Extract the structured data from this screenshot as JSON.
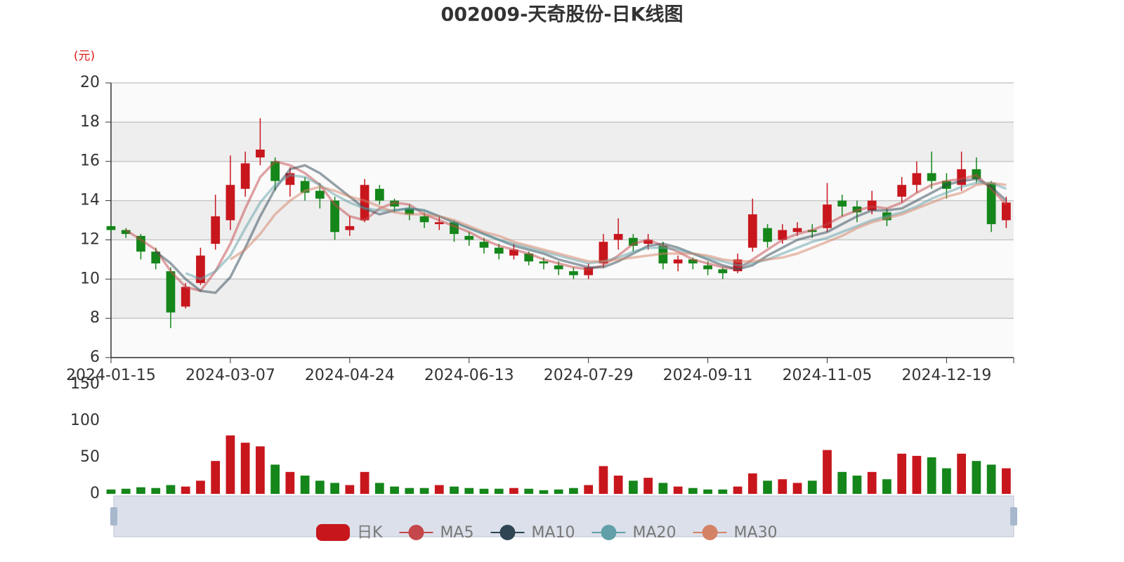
{
  "chart_data": [
    {
      "type": "candlestick",
      "title": "002009-天奇股份-日K线图",
      "y_unit": "(元)",
      "name": "日K",
      "up_color": "#c8161d",
      "down_color": "#14861a",
      "grid": true,
      "ylim": [
        6,
        20
      ],
      "yticks": [
        6,
        8,
        10,
        12,
        14,
        16,
        18,
        20
      ],
      "categories": [
        "2024-01-15",
        null,
        null,
        null,
        null,
        null,
        null,
        null,
        "2024-03-07",
        null,
        null,
        null,
        null,
        null,
        null,
        null,
        "2024-04-24",
        null,
        null,
        null,
        null,
        null,
        null,
        null,
        "2024-06-13",
        null,
        null,
        null,
        null,
        null,
        null,
        null,
        "2024-07-29",
        null,
        null,
        null,
        null,
        null,
        null,
        null,
        "2024-09-11",
        null,
        null,
        null,
        null,
        null,
        null,
        null,
        "2024-11-05",
        null,
        null,
        null,
        null,
        null,
        null,
        null,
        "2024-12-19",
        null,
        null,
        null,
        null
      ],
      "open": [
        12.7,
        12.5,
        12.2,
        11.4,
        10.4,
        8.6,
        9.8,
        11.8,
        13.0,
        14.6,
        16.2,
        16.0,
        14.8,
        15.0,
        14.5,
        14.0,
        12.5,
        13.0,
        14.6,
        14.0,
        13.6,
        13.2,
        12.8,
        12.9,
        12.2,
        11.9,
        11.6,
        11.2,
        11.3,
        10.9,
        10.7,
        10.4,
        10.2,
        10.8,
        12.0,
        12.1,
        11.8,
        11.7,
        10.8,
        11.0,
        10.7,
        10.5,
        10.4,
        11.6,
        12.6,
        12.0,
        12.4,
        12.5,
        12.6,
        14.0,
        13.7,
        13.5,
        13.4,
        14.2,
        14.8,
        15.4,
        15.0,
        14.8,
        15.6,
        14.9,
        13.0
      ],
      "close": [
        12.5,
        12.3,
        11.4,
        10.8,
        8.3,
        9.6,
        11.2,
        13.2,
        14.8,
        15.9,
        16.6,
        15.0,
        15.4,
        14.4,
        14.1,
        12.4,
        12.7,
        14.8,
        14.0,
        13.7,
        13.3,
        12.9,
        12.9,
        12.3,
        12.0,
        11.6,
        11.3,
        11.5,
        10.9,
        10.8,
        10.5,
        10.2,
        10.6,
        11.9,
        12.3,
        11.7,
        12.0,
        10.8,
        11.0,
        10.8,
        10.5,
        10.3,
        11.0,
        13.3,
        11.9,
        12.5,
        12.6,
        12.4,
        13.8,
        13.7,
        13.4,
        14.0,
        13.0,
        14.8,
        15.4,
        15.0,
        14.6,
        15.6,
        15.1,
        12.8,
        13.9
      ],
      "low": [
        12.4,
        12.1,
        11.0,
        10.5,
        7.5,
        8.5,
        9.7,
        11.5,
        12.5,
        14.2,
        15.8,
        14.5,
        14.2,
        14.0,
        13.6,
        12.0,
        12.2,
        12.9,
        13.8,
        13.4,
        13.0,
        12.6,
        12.5,
        11.9,
        11.7,
        11.3,
        11.0,
        11.0,
        10.7,
        10.5,
        10.2,
        10.0,
        10.0,
        10.6,
        11.5,
        11.4,
        11.5,
        10.5,
        10.4,
        10.5,
        10.2,
        10.0,
        10.3,
        11.4,
        11.6,
        11.8,
        12.2,
        12.1,
        12.4,
        13.2,
        12.9,
        13.3,
        12.7,
        13.9,
        14.4,
        14.6,
        14.1,
        14.5,
        14.9,
        12.4,
        12.6
      ],
      "high": [
        12.8,
        12.6,
        12.3,
        11.6,
        10.6,
        9.8,
        11.6,
        14.3,
        16.3,
        16.5,
        18.2,
        16.2,
        15.7,
        15.2,
        14.9,
        14.2,
        13.2,
        15.1,
        14.8,
        14.1,
        13.8,
        13.4,
        13.2,
        13.0,
        12.4,
        12.1,
        11.8,
        11.8,
        11.4,
        11.1,
        10.9,
        10.6,
        10.8,
        12.3,
        13.1,
        12.3,
        12.3,
        11.9,
        11.2,
        11.1,
        10.9,
        10.6,
        11.3,
        14.1,
        12.8,
        12.8,
        12.9,
        12.8,
        14.9,
        14.3,
        14.0,
        14.5,
        13.6,
        15.2,
        16.0,
        16.5,
        15.4,
        16.5,
        16.2,
        15.0,
        14.2
      ],
      "series": [
        {
          "name": "MA5",
          "color": "#c4484b",
          "values": [
            null,
            12.5,
            12.0,
            11.5,
            10.4,
            9.6,
            9.4,
            10.4,
            11.8,
            13.6,
            15.2,
            16.0,
            15.8,
            15.4,
            14.8,
            13.8,
            13.2,
            13.0,
            13.6,
            13.9,
            13.8,
            13.3,
            13.0,
            12.7,
            12.4,
            12.0,
            11.7,
            11.5,
            11.3,
            11.0,
            10.8,
            10.6,
            10.5,
            10.7,
            11.2,
            11.8,
            12.0,
            11.7,
            11.4,
            11.0,
            10.8,
            10.6,
            10.5,
            11.0,
            11.5,
            12.0,
            12.3,
            12.5,
            12.8,
            13.2,
            13.5,
            13.7,
            13.6,
            13.9,
            14.4,
            14.8,
            15.0,
            15.1,
            15.3,
            14.6,
            13.8
          ]
        },
        {
          "name": "MA10",
          "color": "#2f4554",
          "values": [
            null,
            null,
            null,
            11.4,
            10.8,
            10.0,
            9.4,
            9.3,
            10.1,
            11.6,
            13.2,
            14.6,
            15.6,
            15.8,
            15.4,
            14.8,
            14.2,
            13.6,
            13.3,
            13.5,
            13.6,
            13.5,
            13.2,
            12.9,
            12.6,
            12.3,
            12.0,
            11.7,
            11.5,
            11.3,
            11.0,
            10.8,
            10.6,
            10.6,
            10.9,
            11.3,
            11.7,
            11.8,
            11.6,
            11.3,
            11.0,
            10.7,
            10.5,
            10.7,
            11.2,
            11.6,
            12.0,
            12.2,
            12.4,
            12.8,
            13.2,
            13.5,
            13.5,
            13.6,
            14.0,
            14.4,
            14.8,
            15.0,
            15.1,
            14.7,
            14.0
          ]
        },
        {
          "name": "MA20",
          "color": "#61a0a8",
          "values": [
            null,
            null,
            null,
            null,
            null,
            10.3,
            10.0,
            10.4,
            11.2,
            12.6,
            13.9,
            14.8,
            15.3,
            15.2,
            14.8,
            14.3,
            13.9,
            13.6,
            13.5,
            13.5,
            13.6,
            13.5,
            13.2,
            12.9,
            12.6,
            12.3,
            12.0,
            11.8,
            11.6,
            11.4,
            11.2,
            11.0,
            10.8,
            10.9,
            11.1,
            11.4,
            11.6,
            11.6,
            11.5,
            11.3,
            11.1,
            10.9,
            10.7,
            10.8,
            11.0,
            11.3,
            11.6,
            11.9,
            12.1,
            12.4,
            12.7,
            13.0,
            13.2,
            13.4,
            13.7,
            14.1,
            14.4,
            14.7,
            14.9,
            14.9,
            14.6
          ]
        },
        {
          "name": "MA30",
          "color": "#d48265",
          "values": [
            null,
            null,
            null,
            null,
            null,
            null,
            null,
            null,
            11.0,
            11.5,
            12.3,
            13.3,
            14.0,
            14.5,
            14.7,
            14.5,
            14.2,
            14.0,
            13.7,
            13.4,
            13.3,
            13.3,
            13.2,
            13.0,
            12.7,
            12.4,
            12.2,
            11.9,
            11.7,
            11.5,
            11.3,
            11.1,
            10.9,
            10.9,
            11.0,
            11.1,
            11.2,
            11.3,
            11.3,
            11.3,
            11.2,
            11.0,
            10.9,
            10.9,
            11.0,
            11.1,
            11.3,
            11.6,
            11.9,
            12.2,
            12.6,
            12.9,
            13.1,
            13.3,
            13.6,
            13.9,
            14.2,
            14.4,
            14.8,
            14.9,
            14.8
          ]
        }
      ]
    },
    {
      "type": "bar",
      "ylim": [
        0,
        150
      ],
      "yticks": [
        0,
        50,
        100,
        150
      ],
      "values": [
        6,
        7,
        9,
        8,
        12,
        10,
        18,
        45,
        80,
        70,
        65,
        40,
        30,
        25,
        18,
        15,
        12,
        30,
        15,
        10,
        8,
        8,
        12,
        10,
        8,
        7,
        7,
        8,
        7,
        5,
        6,
        8,
        12,
        38,
        25,
        18,
        22,
        15,
        10,
        8,
        6,
        6,
        10,
        28,
        18,
        20,
        15,
        18,
        60,
        30,
        25,
        30,
        20,
        55,
        52,
        50,
        35,
        55,
        45,
        40,
        35
      ]
    }
  ]
}
